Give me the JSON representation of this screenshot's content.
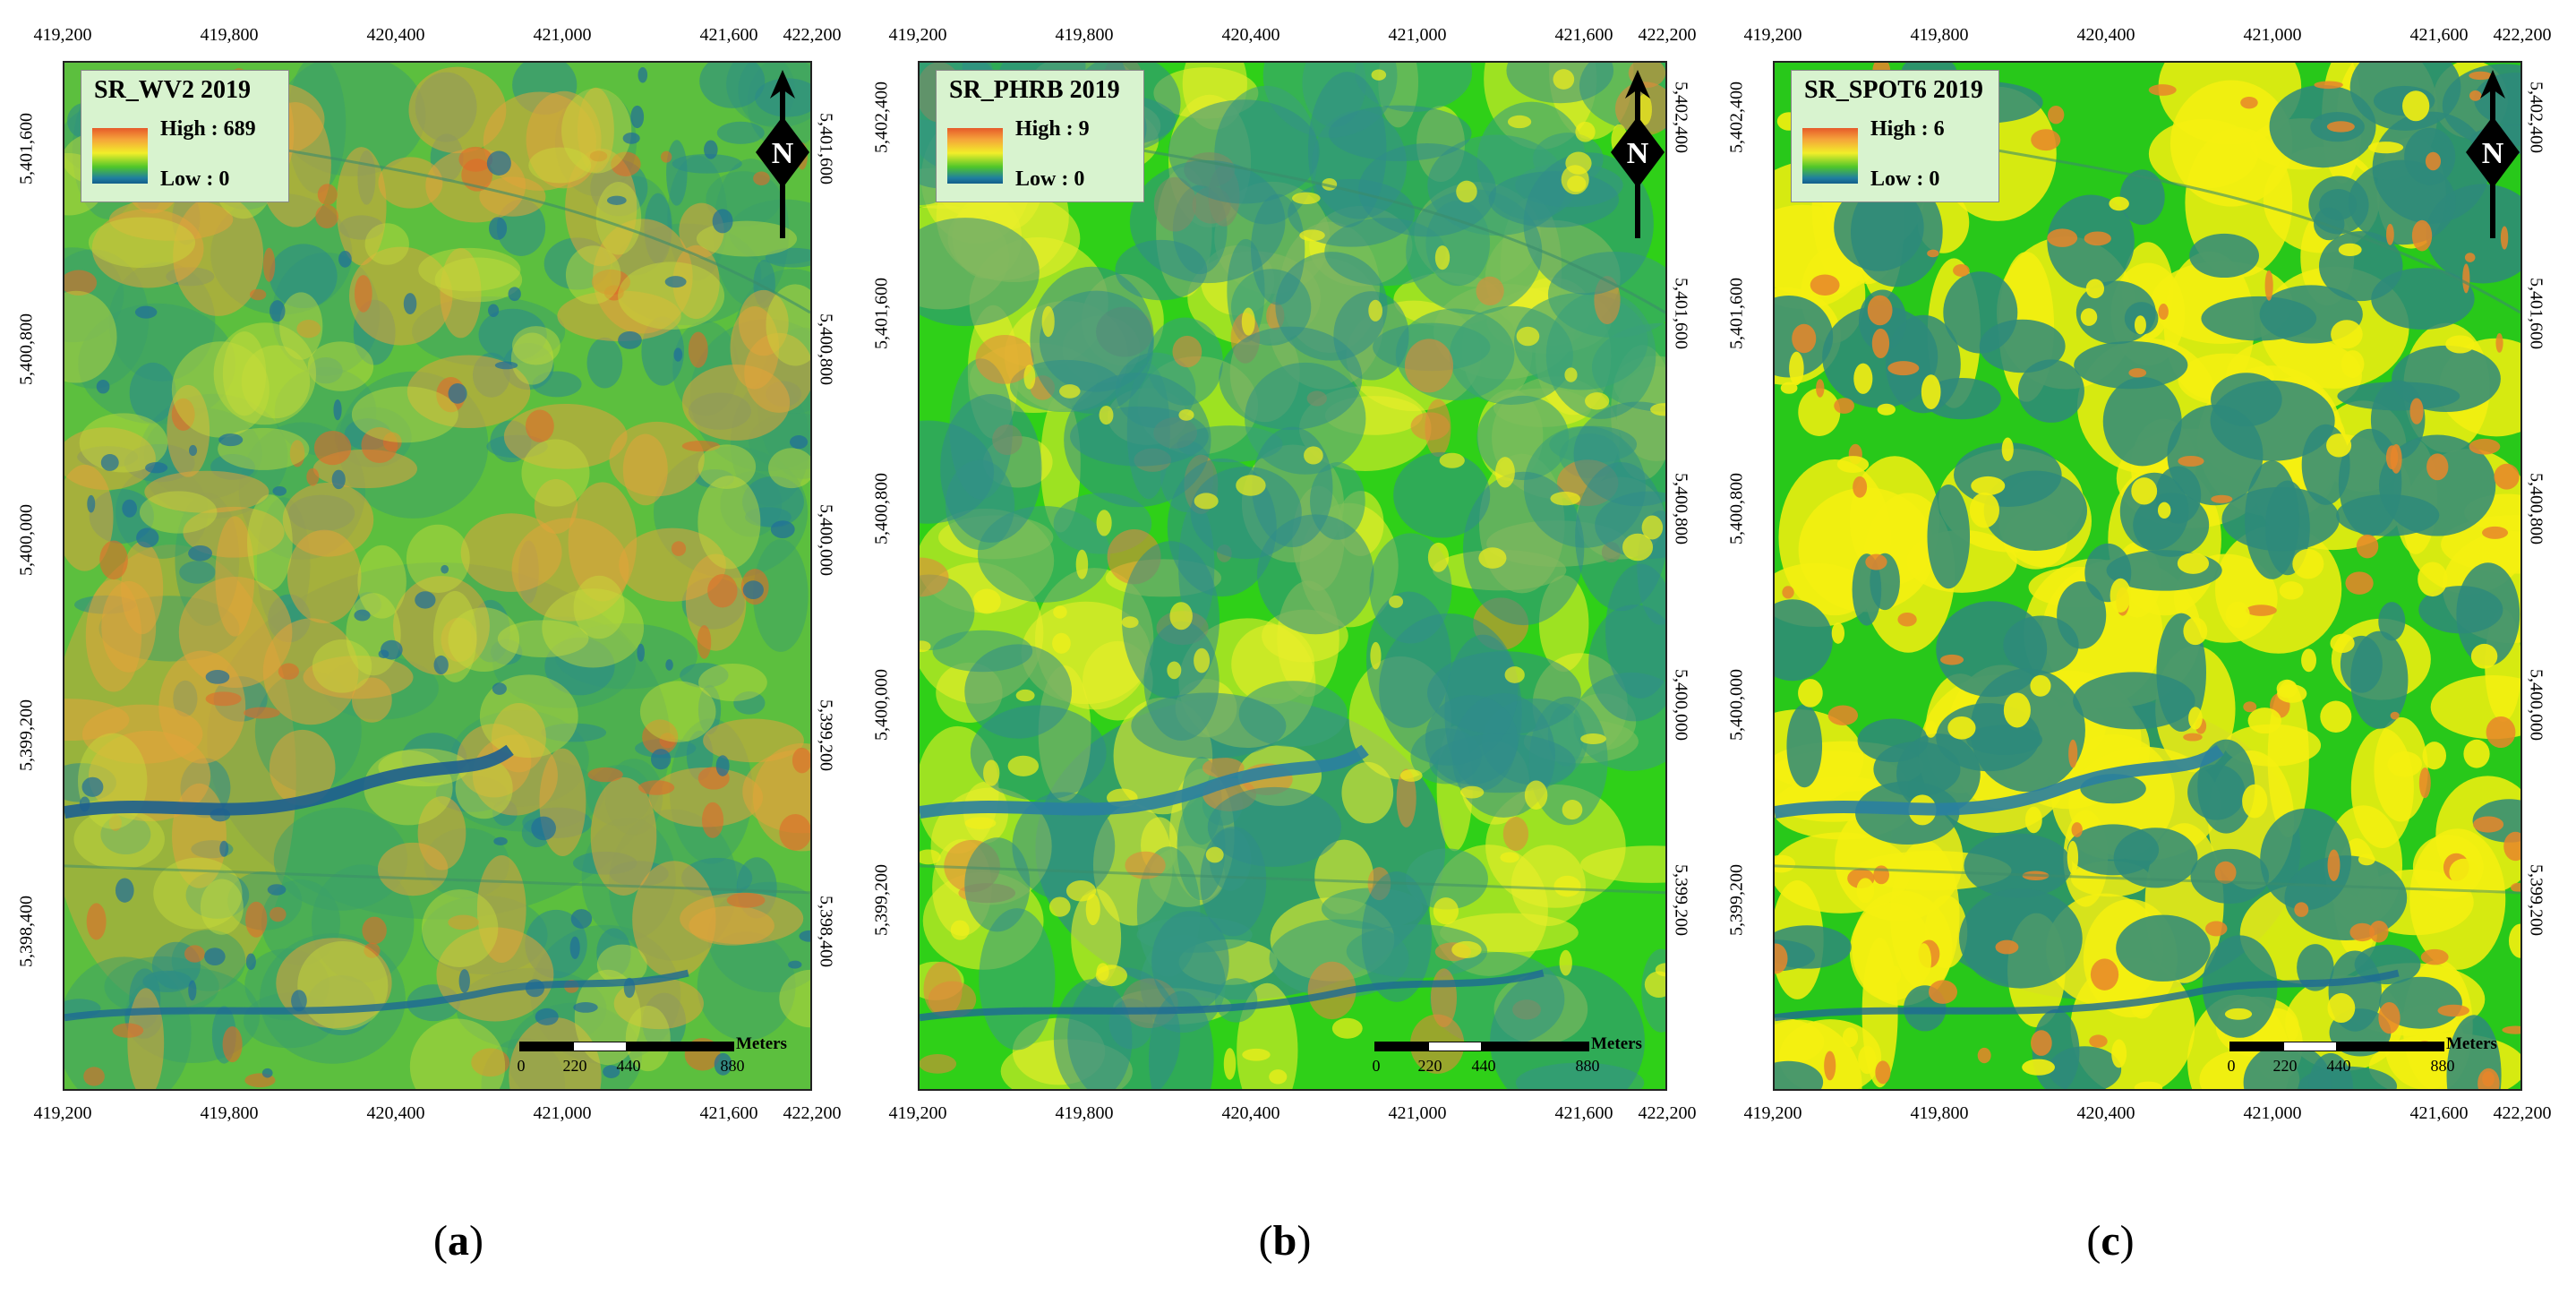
{
  "panels": [
    {
      "legend_title": "SR_WV2 2019",
      "legend_high": "High : 689",
      "legend_low": "Low : 0",
      "caption_letter": "a",
      "x_ticks": [
        "419,200",
        "419,800",
        "420,400",
        "421,000",
        "421,600",
        "422,200"
      ],
      "y_ticks": [
        "5,401,600",
        "5,400,800",
        "5,400,000",
        "5,399,200",
        "5,398,400"
      ],
      "palette": "wv2"
    },
    {
      "legend_title": "SR_PHRB 2019",
      "legend_high": "High : 9",
      "legend_low": "Low : 0",
      "caption_letter": "b",
      "x_ticks": [
        "419,200",
        "419,800",
        "420,400",
        "421,000",
        "421,600",
        "422,200"
      ],
      "y_ticks": [
        "5,402,400",
        "5,401,600",
        "5,400,800",
        "5,400,000",
        "5,399,200"
      ],
      "palette": "phrb"
    },
    {
      "legend_title": "SR_SPOT6 2019",
      "legend_high": "High : 6",
      "legend_low": "Low : 0",
      "caption_letter": "c",
      "x_ticks": [
        "419,200",
        "419,800",
        "420,400",
        "421,000",
        "421,600",
        "422,200"
      ],
      "y_ticks": [
        "5,402,400",
        "5,401,600",
        "5,400,800",
        "5,400,000",
        "5,399,200"
      ],
      "palette": "spot6"
    }
  ],
  "north_label": "N",
  "scale": {
    "unit": "Meters",
    "labels": [
      "0",
      "220",
      "440",
      "880"
    ]
  },
  "colors": {
    "high": "#e65a2a",
    "orange": "#f0a03a",
    "yellow": "#f4f020",
    "green": "#3fcf22",
    "low": "#1e7f9c",
    "legend_bg": "#d8f3cf"
  }
}
